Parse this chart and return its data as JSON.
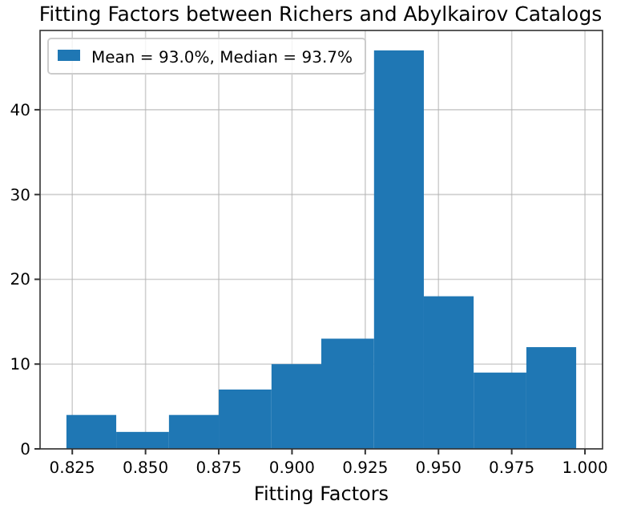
{
  "chart_data": {
    "type": "histogram",
    "title": "Fitting Factors between Richers and Abylkairov Catalogs",
    "xlabel": "Fitting Factors",
    "bins": [
      0.823,
      0.84,
      0.858,
      0.875,
      0.893,
      0.91,
      0.928,
      0.945,
      0.962,
      0.98,
      0.997
    ],
    "series": [
      {
        "name": "Mean = 93.0%, Median = 93.7%",
        "color": "#1f77b4",
        "values": [
          4,
          2,
          4,
          7,
          10,
          13,
          47,
          18,
          9,
          12
        ]
      }
    ],
    "xlim": [
      0.814,
      1.006
    ],
    "xticks": [
      {
        "value": 0.825,
        "label": "0.825"
      },
      {
        "value": 0.85,
        "label": "0.850"
      },
      {
        "value": 0.875,
        "label": "0.875"
      },
      {
        "value": 0.9,
        "label": "0.900"
      },
      {
        "value": 0.925,
        "label": "0.925"
      },
      {
        "value": 0.95,
        "label": "0.950"
      },
      {
        "value": 0.975,
        "label": "0.975"
      },
      {
        "value": 1,
        "label": "1.000"
      }
    ],
    "ylim": [
      0,
      49.35
    ],
    "yticks": [
      0,
      10,
      20,
      30,
      40
    ],
    "grid": true,
    "legend": "top left"
  }
}
